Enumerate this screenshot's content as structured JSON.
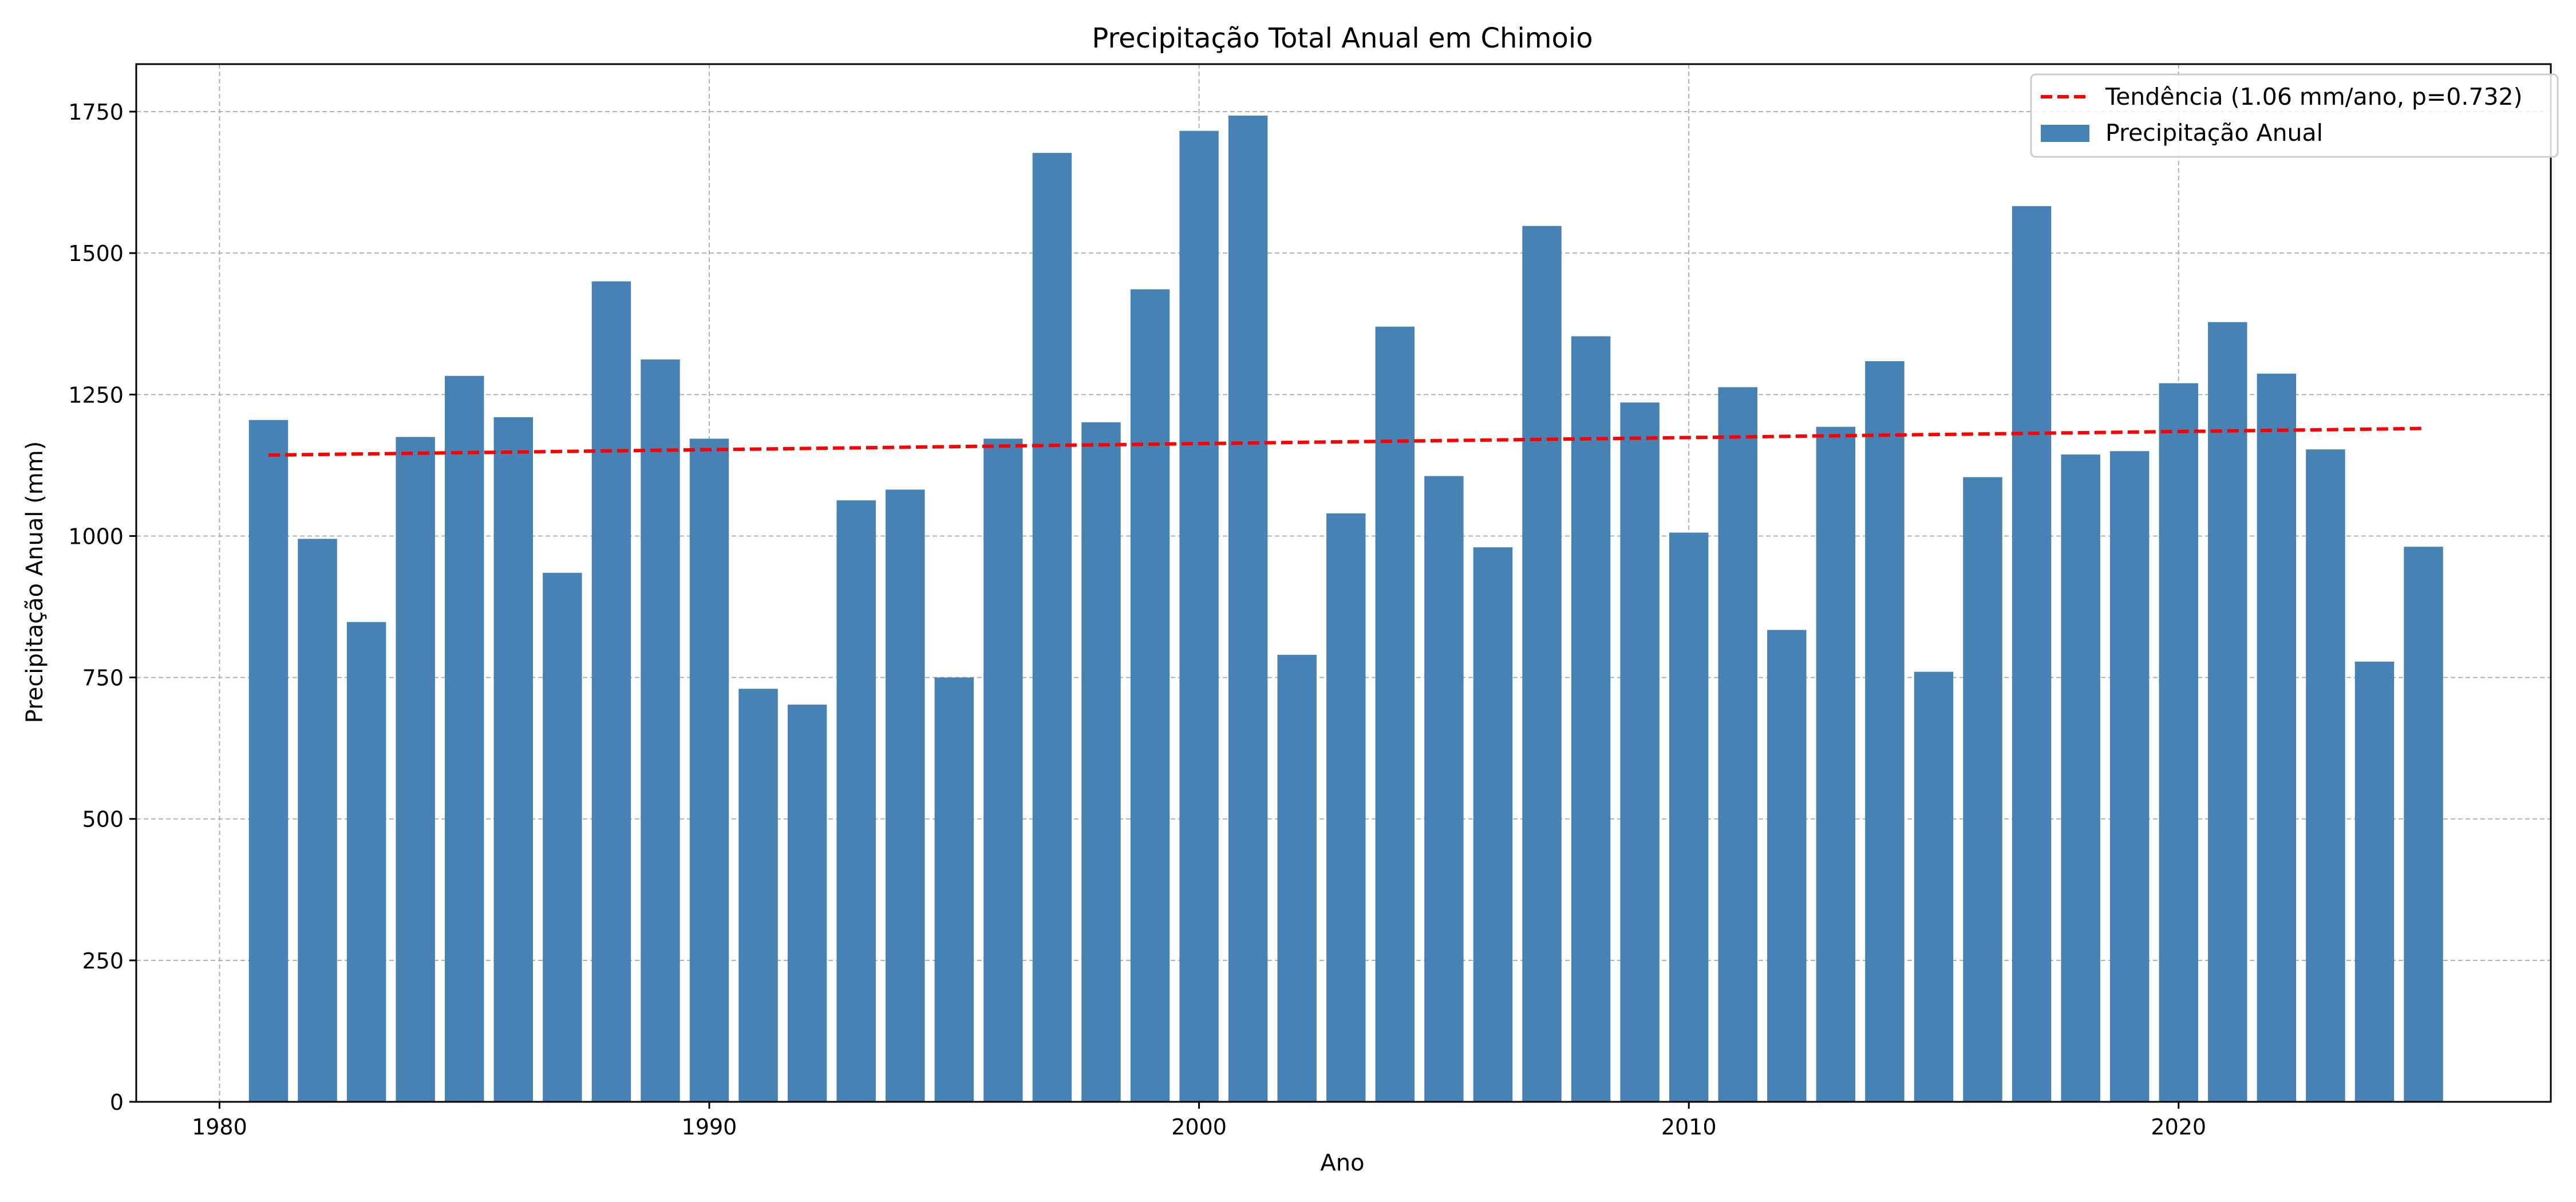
{
  "chart_data": {
    "type": "bar",
    "title": "Precipitação Total Anual em Chimoio",
    "xlabel": "Ano",
    "ylabel": "Precipitação Anual (mm)",
    "xlim": [
      1978.3,
      2027.6
    ],
    "ylim": [
      0,
      1834
    ],
    "xticks": [
      1980,
      1990,
      2000,
      2010,
      2020
    ],
    "yticks": [
      0,
      250,
      500,
      750,
      1000,
      1250,
      1500,
      1750
    ],
    "grid": true,
    "legend_position": "top-right",
    "bar_color": "#4682B4",
    "series": [
      {
        "name": "Precipitação Anual",
        "x": [
          1981,
          1982,
          1983,
          1984,
          1985,
          1986,
          1987,
          1988,
          1989,
          1990,
          1991,
          1992,
          1993,
          1994,
          1995,
          1996,
          1997,
          1998,
          1999,
          2000,
          2001,
          2002,
          2003,
          2004,
          2005,
          2006,
          2007,
          2008,
          2009,
          2010,
          2011,
          2012,
          2013,
          2014,
          2015,
          2016,
          2017,
          2018,
          2019,
          2020,
          2021,
          2022,
          2023,
          2024,
          2025
        ],
        "values": [
          1205,
          995,
          848,
          1175,
          1283,
          1210,
          935,
          1450,
          1312,
          1172,
          730,
          702,
          1063,
          1082,
          750,
          1172,
          1677,
          1201,
          1436,
          1716,
          1743,
          790,
          1040,
          1370,
          1106,
          980,
          1548,
          1353,
          1236,
          1006,
          1263,
          834,
          1193,
          1309,
          760,
          1104,
          1583,
          1144,
          1150,
          1270,
          1378,
          1287,
          1153,
          778,
          981
        ]
      }
    ],
    "trend": {
      "name": "Tendência (1.06 mm/ano, p=0.732)",
      "color": "#FF0000",
      "x": [
        1981,
        2025
      ],
      "values": [
        1143,
        1190
      ]
    }
  }
}
